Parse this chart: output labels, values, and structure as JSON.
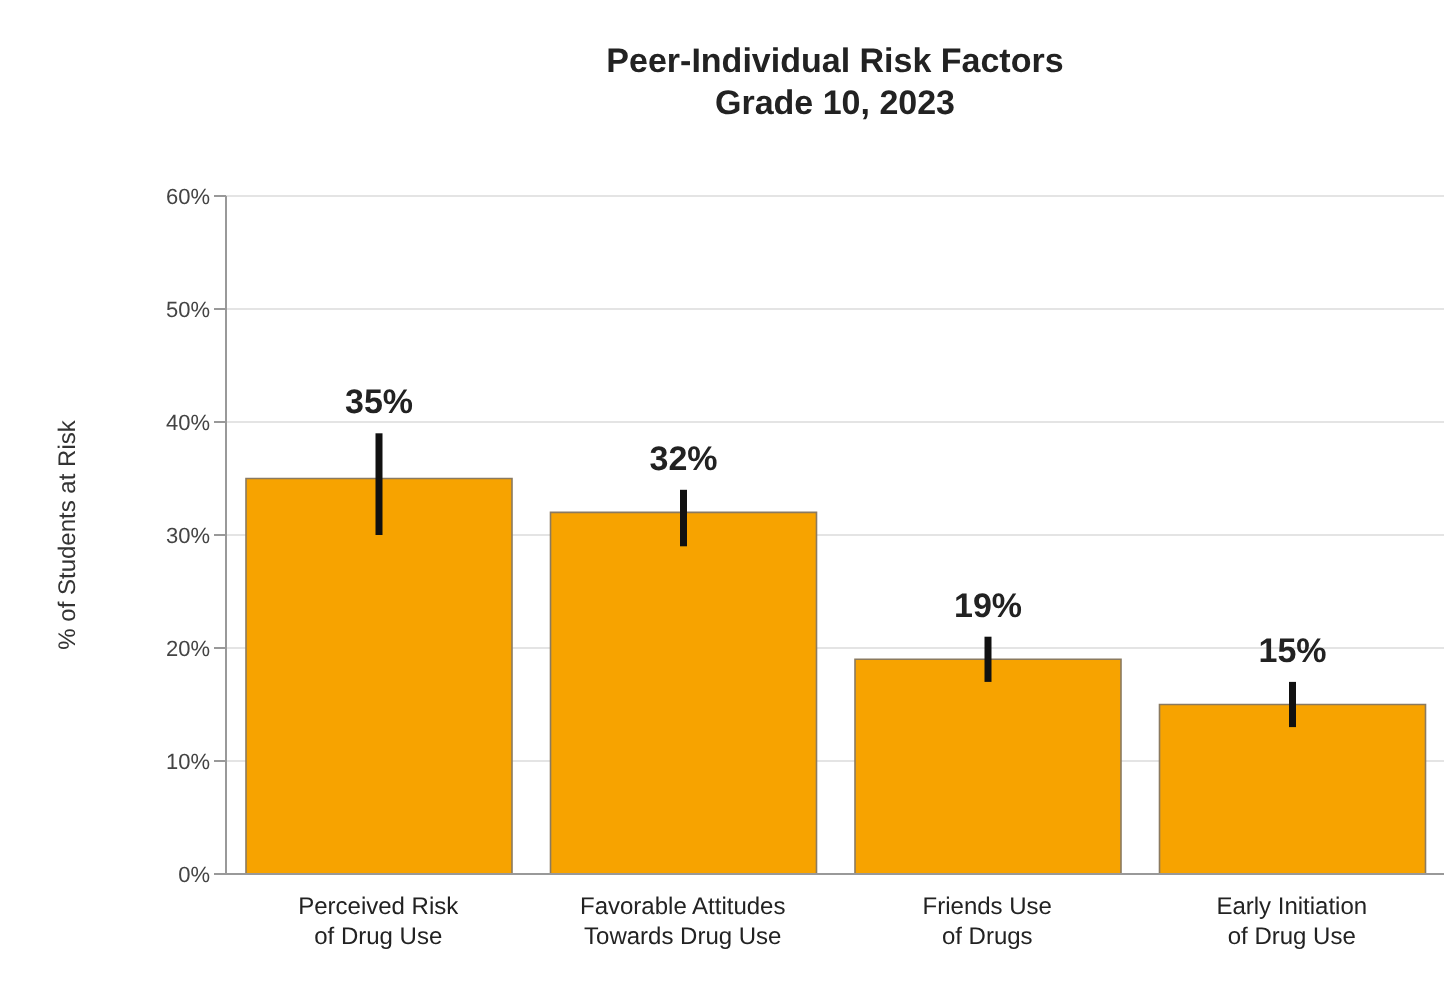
{
  "chart_data": {
    "type": "bar",
    "title": "Peer-Individual Risk Factors",
    "subtitle": "Grade 10, 2023",
    "ylabel": "% of Students at Risk",
    "categories": [
      "Perceived Risk of Drug Use",
      "Favorable Attitudes Towards Drug Use",
      "Friends Use of Drugs",
      "Early Initiation of Drug Use"
    ],
    "values": [
      35,
      32,
      19,
      15
    ],
    "value_labels": [
      "35%",
      "32%",
      "19%",
      "15%"
    ],
    "errors": [
      [
        30,
        39
      ],
      [
        29,
        34
      ],
      [
        17,
        21
      ],
      [
        13,
        17
      ]
    ],
    "color": "#f7a300",
    "ylim": [
      0,
      60
    ],
    "yticks": [
      {
        "value": 0,
        "label": "0%"
      },
      {
        "value": 10,
        "label": "10%"
      },
      {
        "value": 20,
        "label": "20%"
      },
      {
        "value": 30,
        "label": "30%"
      },
      {
        "value": 40,
        "label": "40%"
      },
      {
        "value": 50,
        "label": "50%"
      },
      {
        "value": 60,
        "label": "60%"
      }
    ],
    "grid": "y"
  }
}
